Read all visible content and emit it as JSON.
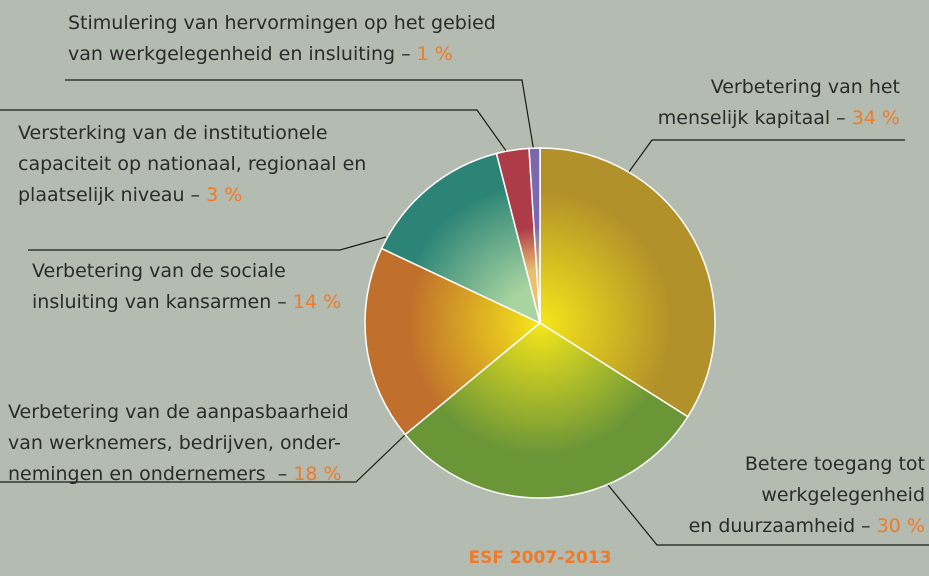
{
  "chart_data": {
    "type": "pie",
    "title": "ESF 2007-2013",
    "categories": [
      [
        "Verbetering van het",
        "menselijk kapitaal – "
      ],
      [
        "Betere toegang tot",
        "werkgelegenheid",
        "en duurzaamheid – "
      ],
      [
        "Verbetering van de aanpasbaarheid",
        "van werknemers, bedrijven, onder-",
        "nemingen en ondernemers  – "
      ],
      [
        "Verbetering van de sociale",
        "insluiting van kansarmen – "
      ],
      [
        "Versterking van de institutionele",
        "capaciteit op nationaal, regionaal en",
        "plaatselijk niveau – "
      ],
      [
        "Stimulering van hervormingen op het gebied",
        "van werkgelegenheid en insluiting – "
      ]
    ],
    "values": [
      34,
      30,
      18,
      14,
      3,
      1
    ],
    "value_labels": [
      "34 %",
      "30 %",
      "18 %",
      "14 %",
      "3 %",
      "1 %"
    ],
    "colors": [
      "#b3912a",
      "#6b9638",
      "#c0702c",
      "#2c8476",
      "#ad3b48",
      "#7a69ad"
    ],
    "value_label_color": "#f07a28"
  }
}
